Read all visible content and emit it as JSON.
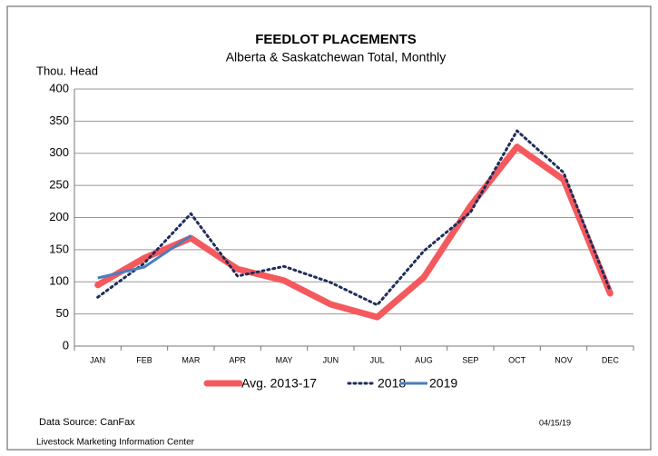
{
  "chart_data": {
    "type": "line",
    "title": "FEEDLOT PLACEMENTS",
    "subtitle": "Alberta & Saskatchewan Total, Monthly",
    "y_axis_label": "Thou. Head",
    "categories": [
      "JAN",
      "FEB",
      "MAR",
      "APR",
      "MAY",
      "JUN",
      "JUL",
      "AUG",
      "SEP",
      "OCT",
      "NOV",
      "DEC"
    ],
    "series": [
      {
        "name": "Avg. 2013-17",
        "color": "#f4595e",
        "values": [
          95,
          137,
          168,
          120,
          102,
          65,
          45,
          107,
          218,
          310,
          259,
          82
        ]
      },
      {
        "name": "2018",
        "color": "#1f2d5a",
        "values": [
          76,
          129,
          206,
          109,
          124,
          99,
          64,
          148,
          208,
          335,
          270,
          86
        ]
      },
      {
        "name": "2019",
        "color": "#4a7ebb",
        "values": [
          106,
          123,
          172,
          null,
          null,
          null,
          null,
          null,
          null,
          null,
          null,
          null
        ]
      }
    ],
    "ylim": [
      0,
      400
    ],
    "yticks": [
      0,
      50,
      100,
      150,
      200,
      250,
      300,
      350,
      400
    ],
    "grid": true,
    "legend": "bottom",
    "source": "Data Source:  CanFax",
    "date": "04/15/19",
    "credit": "Livestock Marketing Information Center"
  }
}
